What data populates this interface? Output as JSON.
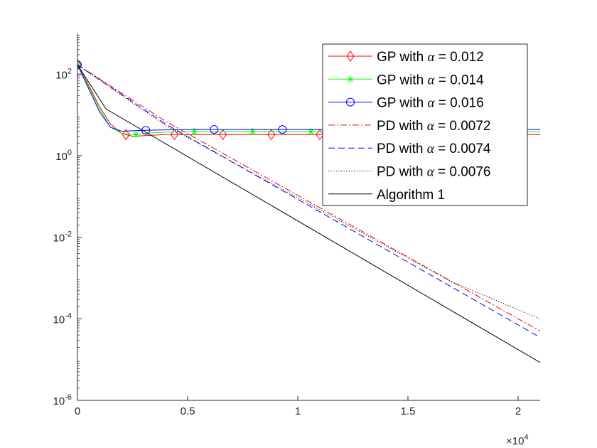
{
  "chart_data": {
    "type": "line",
    "title": "",
    "xlabel": "",
    "ylabel": "",
    "x_scale": "linear",
    "y_scale": "log",
    "xlim": [
      0,
      21000
    ],
    "ylim": [
      1e-06,
      1000
    ],
    "x_exponent_label": "×10",
    "x_exponent_power": "4",
    "x_ticks": [
      {
        "value": 0,
        "label": "0"
      },
      {
        "value": 5000,
        "label": "0.5"
      },
      {
        "value": 10000,
        "label": "1"
      },
      {
        "value": 15000,
        "label": "1.5"
      },
      {
        "value": 20000,
        "label": "2"
      }
    ],
    "y_ticks": [
      {
        "value": 1e-06,
        "base": "10",
        "exp": "-6"
      },
      {
        "value": 0.0001,
        "base": "10",
        "exp": "-4"
      },
      {
        "value": 0.01,
        "base": "10",
        "exp": "-2"
      },
      {
        "value": 1,
        "base": "10",
        "exp": "0"
      },
      {
        "value": 100,
        "base": "10",
        "exp": "2"
      }
    ],
    "legend_position": "top-right",
    "series": [
      {
        "name": "GP with α = 0.012",
        "legend_prefix": "GP with ",
        "legend_symbol": "α",
        "legend_suffix": " = 0.012",
        "color": "#ff0000",
        "dash": "solid",
        "marker": "diamond",
        "x": [
          0,
          500,
          1000,
          1500,
          2000,
          2500,
          3000,
          3500,
          4000,
          5000,
          21000
        ],
        "y": [
          170,
          55,
          16,
          6,
          3.5,
          3.0,
          3.1,
          3.2,
          3.3,
          3.3,
          3.3
        ],
        "marker_x": [
          0,
          2200,
          4400,
          6600,
          8800,
          11000
        ]
      },
      {
        "name": "GP with α = 0.014",
        "legend_prefix": "GP with ",
        "legend_symbol": "α",
        "legend_suffix": " = 0.014",
        "color": "#00ff00",
        "dash": "solid",
        "marker": "star",
        "x": [
          0,
          500,
          1000,
          1500,
          2000,
          2600,
          3200,
          4000,
          5000,
          21000
        ],
        "y": [
          170,
          50,
          14,
          5,
          3.5,
          3.3,
          3.6,
          3.8,
          3.9,
          3.9
        ],
        "marker_x": [
          0,
          2650,
          5300,
          7950,
          10600
        ]
      },
      {
        "name": "GP with α = 0.016",
        "legend_prefix": "GP with ",
        "legend_symbol": "α",
        "legend_suffix": " = 0.016",
        "color": "#0000ff",
        "dash": "solid",
        "marker": "circle",
        "x": [
          0,
          500,
          1000,
          1500,
          2000,
          2500,
          3100,
          4000,
          5000,
          21000
        ],
        "y": [
          170,
          45,
          12,
          5,
          4.0,
          4.1,
          4.2,
          4.3,
          4.4,
          4.4
        ],
        "marker_x": [
          0,
          3100,
          6200,
          9300
        ]
      },
      {
        "name": "PD with α = 0.0072",
        "legend_prefix": "PD with ",
        "legend_symbol": "α",
        "legend_suffix": " = 0.0072",
        "color": "#ff0000",
        "dash": "dashdot",
        "marker": "none",
        "x": [
          0,
          4000,
          21000
        ],
        "y": [
          170,
          7,
          5e-05
        ],
        "marker_x": []
      },
      {
        "name": "PD with α = 0.0074",
        "legend_prefix": "PD with ",
        "legend_symbol": "α",
        "legend_suffix": " = 0.0074",
        "color": "#0000ff",
        "dash": "dashed",
        "marker": "none",
        "x": [
          0,
          4000,
          21000
        ],
        "y": [
          170,
          6,
          3.5e-05
        ],
        "marker_x": []
      },
      {
        "name": "PD with α = 0.0076",
        "legend_prefix": "PD with ",
        "legend_symbol": "α",
        "legend_suffix": " = 0.0076",
        "color": "#000000",
        "dash": "dotted",
        "marker": "none",
        "x": [
          0,
          4000,
          17000,
          21000
        ],
        "y": [
          170,
          5.5,
          0.0008,
          0.0001
        ],
        "marker_x": []
      },
      {
        "name": "Algorithm 1",
        "legend_prefix": "Algorithm 1",
        "legend_symbol": "",
        "legend_suffix": "",
        "color": "#000000",
        "dash": "solid",
        "marker": "none",
        "x": [
          0,
          1300,
          21000
        ],
        "y": [
          170,
          14,
          8.5e-06
        ],
        "marker_x": []
      }
    ]
  }
}
